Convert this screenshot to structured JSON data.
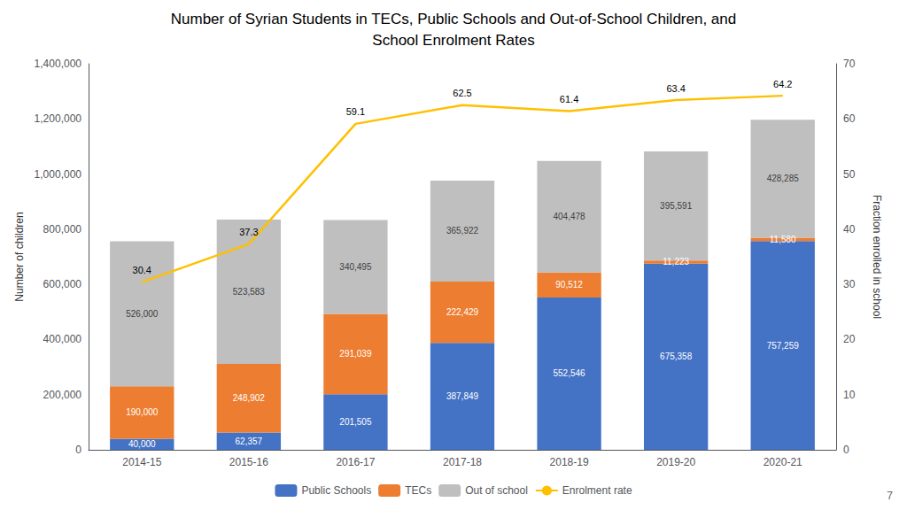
{
  "chart_data": {
    "type": "bar",
    "title": "Number of Syrian Students in TECs, Public Schools and Out-of-School Children, and",
    "subtitle": "School Enrolment Rates",
    "categories": [
      "2014-15",
      "2015-16",
      "2016-17",
      "2017-18",
      "2018-19",
      "2019-20",
      "2020-21"
    ],
    "series": [
      {
        "name": "Public Schools",
        "type": "bar",
        "color": "#4472C4",
        "values": [
          40000,
          62357,
          201505,
          387849,
          552546,
          675358,
          757259
        ],
        "value_labels": [
          "40,000",
          "62,357",
          "201,505",
          "387,849",
          "552,546",
          "675,358",
          "757,259"
        ]
      },
      {
        "name": "TECs",
        "type": "bar",
        "color": "#ED7D31",
        "values": [
          190000,
          248902,
          291039,
          222429,
          90512,
          11223,
          11580
        ],
        "value_labels": [
          "190,000",
          "248,902",
          "291,039",
          "222,429",
          "90,512",
          "11,223",
          "11,580"
        ]
      },
      {
        "name": "Out of school",
        "type": "bar",
        "color": "#BFBFBF",
        "values": [
          526000,
          523583,
          340495,
          365922,
          404478,
          395591,
          428285
        ],
        "value_labels": [
          "526,000",
          "523,583",
          "340,495",
          "365,922",
          "404,478",
          "395,591",
          "428,285"
        ]
      },
      {
        "name": "Enrolment rate",
        "type": "line",
        "axis": "y2",
        "color": "#FFC000",
        "values": [
          30.4,
          37.3,
          59.1,
          62.5,
          61.4,
          63.4,
          64.2
        ]
      }
    ],
    "stacked": true,
    "data_labels": true,
    "ylabel": "Number of children",
    "y2label": "Fraction enrolled in school",
    "ylim": [
      0,
      1400000
    ],
    "yticks": [
      0,
      {
        "value": 200000,
        "label": "200,000"
      },
      {
        "value": 400000,
        "label": "400,000"
      },
      {
        "value": 600000,
        "label": "600,000"
      },
      {
        "value": 800000,
        "label": "800,000"
      },
      {
        "value": 1000000,
        "label": "1,000,000"
      },
      {
        "value": 1200000,
        "label": "1,200,000"
      },
      {
        "value": 1400000,
        "label": "1,400,000"
      }
    ],
    "y2lim": [
      0,
      70
    ],
    "y2ticks": [
      0,
      10,
      20,
      30,
      40,
      50,
      60,
      70
    ],
    "grid": false,
    "legend": "bottom",
    "annotations": [
      "7"
    ]
  }
}
